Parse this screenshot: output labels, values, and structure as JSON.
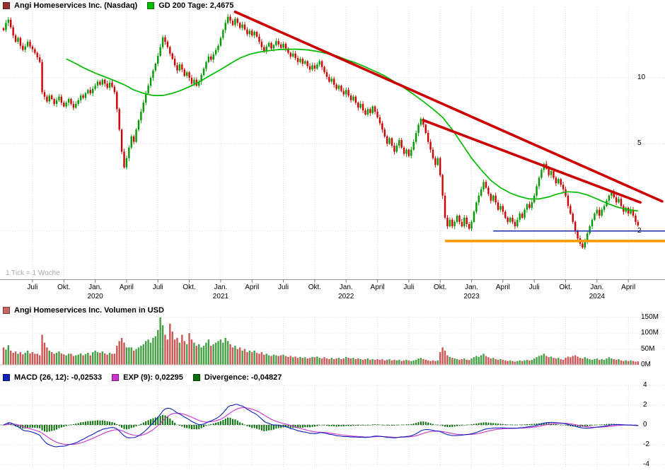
{
  "legends": {
    "price": [
      {
        "label": "Angi Homeservices Inc. (Nasdaq)",
        "color": "#993333"
      },
      {
        "label": "GD 200 Tage: 2,4675",
        "color": "#00bb00"
      }
    ],
    "volume": [
      {
        "label": "Angi Homeservices Inc. Volumen in USD",
        "color": "#cc6666"
      }
    ],
    "macd": [
      {
        "label": "MACD (26, 12): -0,02533",
        "color": "#1122bb"
      },
      {
        "label": "EXP (9): 0,02295",
        "color": "#cc33cc"
      },
      {
        "label": "Divergence: -0,04827",
        "color": "#056f05"
      }
    ]
  },
  "price_panel": {
    "tick_note": "1 Tick = 1 Woche"
  },
  "chart_data": [
    {
      "type": "candlestick",
      "title": "Angi Homeservices Inc. (Nasdaq)",
      "timeframe": "1 Tick = 1 Woche",
      "y_scale": "log",
      "y_axis": [
        {
          "v": 10,
          "label": "10"
        },
        {
          "v": 5,
          "label": "5"
        },
        {
          "v": 2,
          "label": "2"
        }
      ],
      "x_ticks": [
        {
          "week": 12,
          "label": "Juli"
        },
        {
          "week": 25,
          "label": "Okt."
        },
        {
          "week": 38,
          "label": "Jan.",
          "year": "2020"
        },
        {
          "week": 51,
          "label": "April"
        },
        {
          "week": 64,
          "label": "Juli"
        },
        {
          "week": 77,
          "label": "Okt."
        },
        {
          "week": 90,
          "label": "Jan.",
          "year": "2021"
        },
        {
          "week": 103,
          "label": "April"
        },
        {
          "week": 116,
          "label": "Juli"
        },
        {
          "week": 129,
          "label": "Okt."
        },
        {
          "week": 142,
          "label": "Jan.",
          "year": "2022"
        },
        {
          "week": 155,
          "label": "April"
        },
        {
          "week": 168,
          "label": "Juli"
        },
        {
          "week": 181,
          "label": "Okt."
        },
        {
          "week": 194,
          "label": "Jan.",
          "year": "2023"
        },
        {
          "week": 207,
          "label": "April"
        },
        {
          "week": 220,
          "label": "Juli"
        },
        {
          "week": 233,
          "label": "Okt."
        },
        {
          "week": 246,
          "label": "Jan.",
          "year": "2024"
        },
        {
          "week": 259,
          "label": "April"
        }
      ],
      "colors": {
        "up": "#009900",
        "down": "#cc0000"
      },
      "weekly_closes": [
        16.5,
        17.8,
        18.4,
        17.0,
        15.6,
        14.6,
        15.2,
        14.0,
        13.4,
        13.9,
        14.6,
        13.9,
        13.5,
        13.0,
        12.4,
        11.8,
        8.6,
        8.2,
        7.8,
        8.3,
        8.0,
        7.6,
        7.9,
        8.2,
        7.7,
        7.4,
        7.7,
        8.0,
        7.6,
        7.3,
        7.6,
        7.9,
        8.3,
        8.1,
        8.5,
        8.8,
        8.5,
        8.9,
        9.2,
        9.6,
        9.3,
        9.8,
        9.4,
        9.0,
        9.5,
        9.1,
        8.6,
        7.2,
        5.8,
        4.6,
        3.9,
        4.3,
        4.8,
        5.4,
        5.1,
        5.8,
        6.4,
        7.0,
        7.7,
        8.5,
        9.2,
        10.0,
        10.8,
        11.6,
        12.6,
        13.8,
        15.3,
        14.6,
        13.8,
        12.9,
        12.2,
        11.4,
        10.8,
        11.5,
        10.9,
        10.2,
        10.6,
        10.0,
        9.4,
        9.8,
        9.2,
        9.6,
        10.3,
        11.0,
        11.8,
        12.5,
        12.1,
        12.8,
        13.4,
        14.0,
        15.2,
        16.5,
        17.8,
        19.0,
        18.2,
        17.4,
        18.6,
        17.8,
        16.9,
        17.5,
        16.6,
        15.8,
        16.4,
        15.6,
        16.2,
        15.4,
        14.6,
        13.8,
        13.2,
        13.9,
        14.4,
        13.6,
        14.1,
        14.7,
        14.2,
        13.7,
        14.3,
        13.6,
        13.0,
        12.5,
        12.9,
        12.3,
        11.8,
        12.2,
        11.6,
        11.9,
        11.3,
        10.9,
        11.4,
        11.0,
        11.5,
        11.9,
        11.2,
        10.6,
        10.1,
        9.6,
        9.9,
        9.3,
        8.9,
        9.2,
        8.7,
        8.4,
        8.8,
        8.3,
        7.9,
        8.2,
        7.7,
        7.3,
        7.6,
        7.1,
        6.8,
        7.2,
        6.9,
        7.4,
        7.0,
        6.6,
        6.2,
        5.8,
        5.4,
        5.0,
        5.3,
        4.9,
        4.6,
        4.9,
        5.2,
        4.8,
        4.5,
        4.7,
        4.4,
        4.7,
        5.1,
        5.6,
        6.1,
        6.5,
        6.1,
        5.6,
        5.1,
        4.7,
        4.3,
        4.0,
        4.3,
        3.6,
        2.9,
        2.3,
        2.1,
        2.25,
        2.1,
        2.2,
        2.35,
        2.2,
        2.1,
        2.3,
        2.15,
        2.05,
        2.2,
        2.45,
        2.7,
        2.9,
        3.1,
        3.35,
        3.15,
        2.95,
        2.75,
        2.9,
        2.7,
        2.5,
        2.6,
        2.45,
        2.3,
        2.2,
        2.3,
        2.2,
        2.1,
        2.25,
        2.4,
        2.3,
        2.5,
        2.65,
        2.55,
        2.7,
        2.9,
        3.2,
        3.5,
        3.8,
        4.05,
        3.85,
        3.6,
        3.75,
        3.5,
        3.3,
        3.45,
        3.25,
        3.1,
        2.9,
        2.6,
        2.4,
        2.2,
        2.0,
        1.85,
        1.75,
        1.68,
        1.8,
        1.95,
        2.1,
        2.25,
        2.4,
        2.5,
        2.35,
        2.5,
        2.6,
        2.75,
        2.9,
        3.0,
        2.85,
        2.7,
        2.8,
        2.6,
        2.45,
        2.55,
        2.4,
        2.5,
        2.35,
        2.2,
        2.12
      ],
      "overlays": {
        "gd200": {
          "label": "GD 200 Tage",
          "last_value": 2.4675,
          "color": "#00bb00",
          "points": [
            [
              26,
              12.2
            ],
            [
              30,
              11.6
            ],
            [
              34,
              11.0
            ],
            [
              38,
              10.5
            ],
            [
              42,
              10.1
            ],
            [
              46,
              9.7
            ],
            [
              50,
              9.3
            ],
            [
              54,
              8.8
            ],
            [
              58,
              8.5
            ],
            [
              62,
              8.3
            ],
            [
              66,
              8.3
            ],
            [
              70,
              8.5
            ],
            [
              74,
              8.8
            ],
            [
              78,
              9.2
            ],
            [
              82,
              9.7
            ],
            [
              86,
              10.3
            ],
            [
              90,
              10.9
            ],
            [
              94,
              11.6
            ],
            [
              98,
              12.3
            ],
            [
              102,
              12.8
            ],
            [
              106,
              13.1
            ],
            [
              110,
              13.3
            ],
            [
              114,
              13.45
            ],
            [
              118,
              13.5
            ],
            [
              122,
              13.5
            ],
            [
              126,
              13.4
            ],
            [
              130,
              13.2
            ],
            [
              134,
              12.9
            ],
            [
              138,
              12.6
            ],
            [
              142,
              12.1
            ],
            [
              146,
              11.7
            ],
            [
              150,
              11.2
            ],
            [
              154,
              10.7
            ],
            [
              158,
              10.2
            ],
            [
              162,
              9.6
            ],
            [
              166,
              9.0
            ],
            [
              170,
              8.4
            ],
            [
              174,
              7.8
            ],
            [
              178,
              7.2
            ],
            [
              182,
              6.6
            ],
            [
              186,
              5.8
            ],
            [
              190,
              5.0
            ],
            [
              194,
              4.3
            ],
            [
              198,
              3.8
            ],
            [
              202,
              3.4
            ],
            [
              206,
              3.15
            ],
            [
              210,
              2.98
            ],
            [
              214,
              2.87
            ],
            [
              218,
              2.8
            ],
            [
              222,
              2.8
            ],
            [
              226,
              2.86
            ],
            [
              230,
              2.96
            ],
            [
              234,
              3.02
            ],
            [
              238,
              3.0
            ],
            [
              242,
              2.92
            ],
            [
              246,
              2.8
            ],
            [
              250,
              2.68
            ],
            [
              254,
              2.58
            ],
            [
              258,
              2.51
            ],
            [
              263,
              2.4675
            ]
          ]
        },
        "trendlines": [
          {
            "from_week": 96,
            "from_price": 20.0,
            "to_week": 273,
            "to_price": 2.73,
            "color": "#cc0000"
          },
          {
            "from_week": 174,
            "from_price": 6.4,
            "to_week": 264,
            "to_price": 2.7,
            "color": "#cc0000"
          }
        ],
        "support_lines": [
          {
            "price": 2.0,
            "from_week": 203,
            "color": "#2233aa",
            "width": 1.6
          },
          {
            "price": 1.8,
            "from_week": 183,
            "color": "#ff9900",
            "width": 3.4
          }
        ]
      }
    },
    {
      "type": "bar",
      "title": "Angi Homeservices Inc. Volumen in USD",
      "y_axis": [
        {
          "v": 150,
          "label": "150M"
        },
        {
          "v": 100,
          "label": "100M"
        },
        {
          "v": 50,
          "label": "50M"
        },
        {
          "v": 0,
          "label": "0M"
        }
      ],
      "colors": {
        "up": "#44a044",
        "down": "#cc5555"
      },
      "values_million_usd": [
        55,
        48,
        62,
        45,
        38,
        42,
        35,
        40,
        33,
        38,
        45,
        36,
        40,
        35,
        35,
        30,
        95,
        70,
        55,
        45,
        40,
        35,
        38,
        42,
        36,
        33,
        30,
        35,
        35,
        28,
        30,
        32,
        36,
        30,
        34,
        38,
        30,
        40,
        45,
        40,
        38,
        42,
        36,
        32,
        38,
        35,
        35,
        60,
        75,
        85,
        70,
        55,
        55,
        55,
        45,
        50,
        55,
        60,
        65,
        75,
        80,
        70,
        85,
        90,
        110,
        150,
        125,
        95,
        80,
        130,
        105,
        80,
        85,
        70,
        95,
        75,
        65,
        100,
        80,
        70,
        60,
        65,
        55,
        60,
        70,
        80,
        60,
        65,
        70,
        75,
        80,
        70,
        85,
        75,
        65,
        55,
        60,
        50,
        55,
        45,
        50,
        40,
        45,
        40,
        45,
        38,
        35,
        40,
        32,
        35,
        30,
        28,
        32,
        30,
        28,
        30,
        32,
        28,
        25,
        28,
        24,
        26,
        22,
        25,
        22,
        24,
        20,
        22,
        25,
        24,
        26,
        22,
        20,
        24,
        20,
        18,
        22,
        18,
        20,
        22,
        18,
        20,
        25,
        22,
        20,
        22,
        18,
        20,
        18,
        16,
        18,
        20,
        16,
        18,
        16,
        18,
        16,
        18,
        14,
        16,
        18,
        14,
        16,
        14,
        16,
        12,
        14,
        16,
        14,
        12,
        14,
        16,
        20,
        22,
        18,
        16,
        14,
        12,
        14,
        12,
        14,
        40,
        55,
        45,
        30,
        25,
        22,
        20,
        18,
        16,
        18,
        20,
        16,
        15,
        20,
        24,
        28,
        25,
        30,
        35,
        28,
        24,
        20,
        22,
        18,
        16,
        18,
        16,
        14,
        12,
        14,
        12,
        10,
        12,
        14,
        12,
        14,
        16,
        14,
        16,
        20,
        24,
        28,
        30,
        35,
        28,
        24,
        26,
        22,
        20,
        22,
        18,
        16,
        22,
        26,
        24,
        28,
        30,
        26,
        22,
        20,
        24,
        20,
        18,
        16,
        18,
        20,
        16,
        18,
        16,
        20,
        24,
        20,
        18,
        16,
        18,
        14,
        12,
        14,
        12,
        14,
        12,
        10,
        11
      ]
    },
    {
      "type": "line",
      "title": "MACD",
      "params": {
        "macd_periods": "26, 12",
        "signal_ema": 9
      },
      "last_values": {
        "macd": -0.02533,
        "signal": 0.02295,
        "divergence": -0.04827
      },
      "derived_from": "weekly_closes of chart_data[0]",
      "y_axis": [
        {
          "v": 4,
          "label": "4"
        },
        {
          "v": 2,
          "label": "2"
        },
        {
          "v": 0,
          "label": "0"
        },
        {
          "v": -2,
          "label": "-2"
        },
        {
          "v": -4,
          "label": "-4"
        }
      ],
      "colors": {
        "macd": "#1122bb",
        "signal": "#cc33cc",
        "histogram": "#056f05"
      }
    }
  ]
}
